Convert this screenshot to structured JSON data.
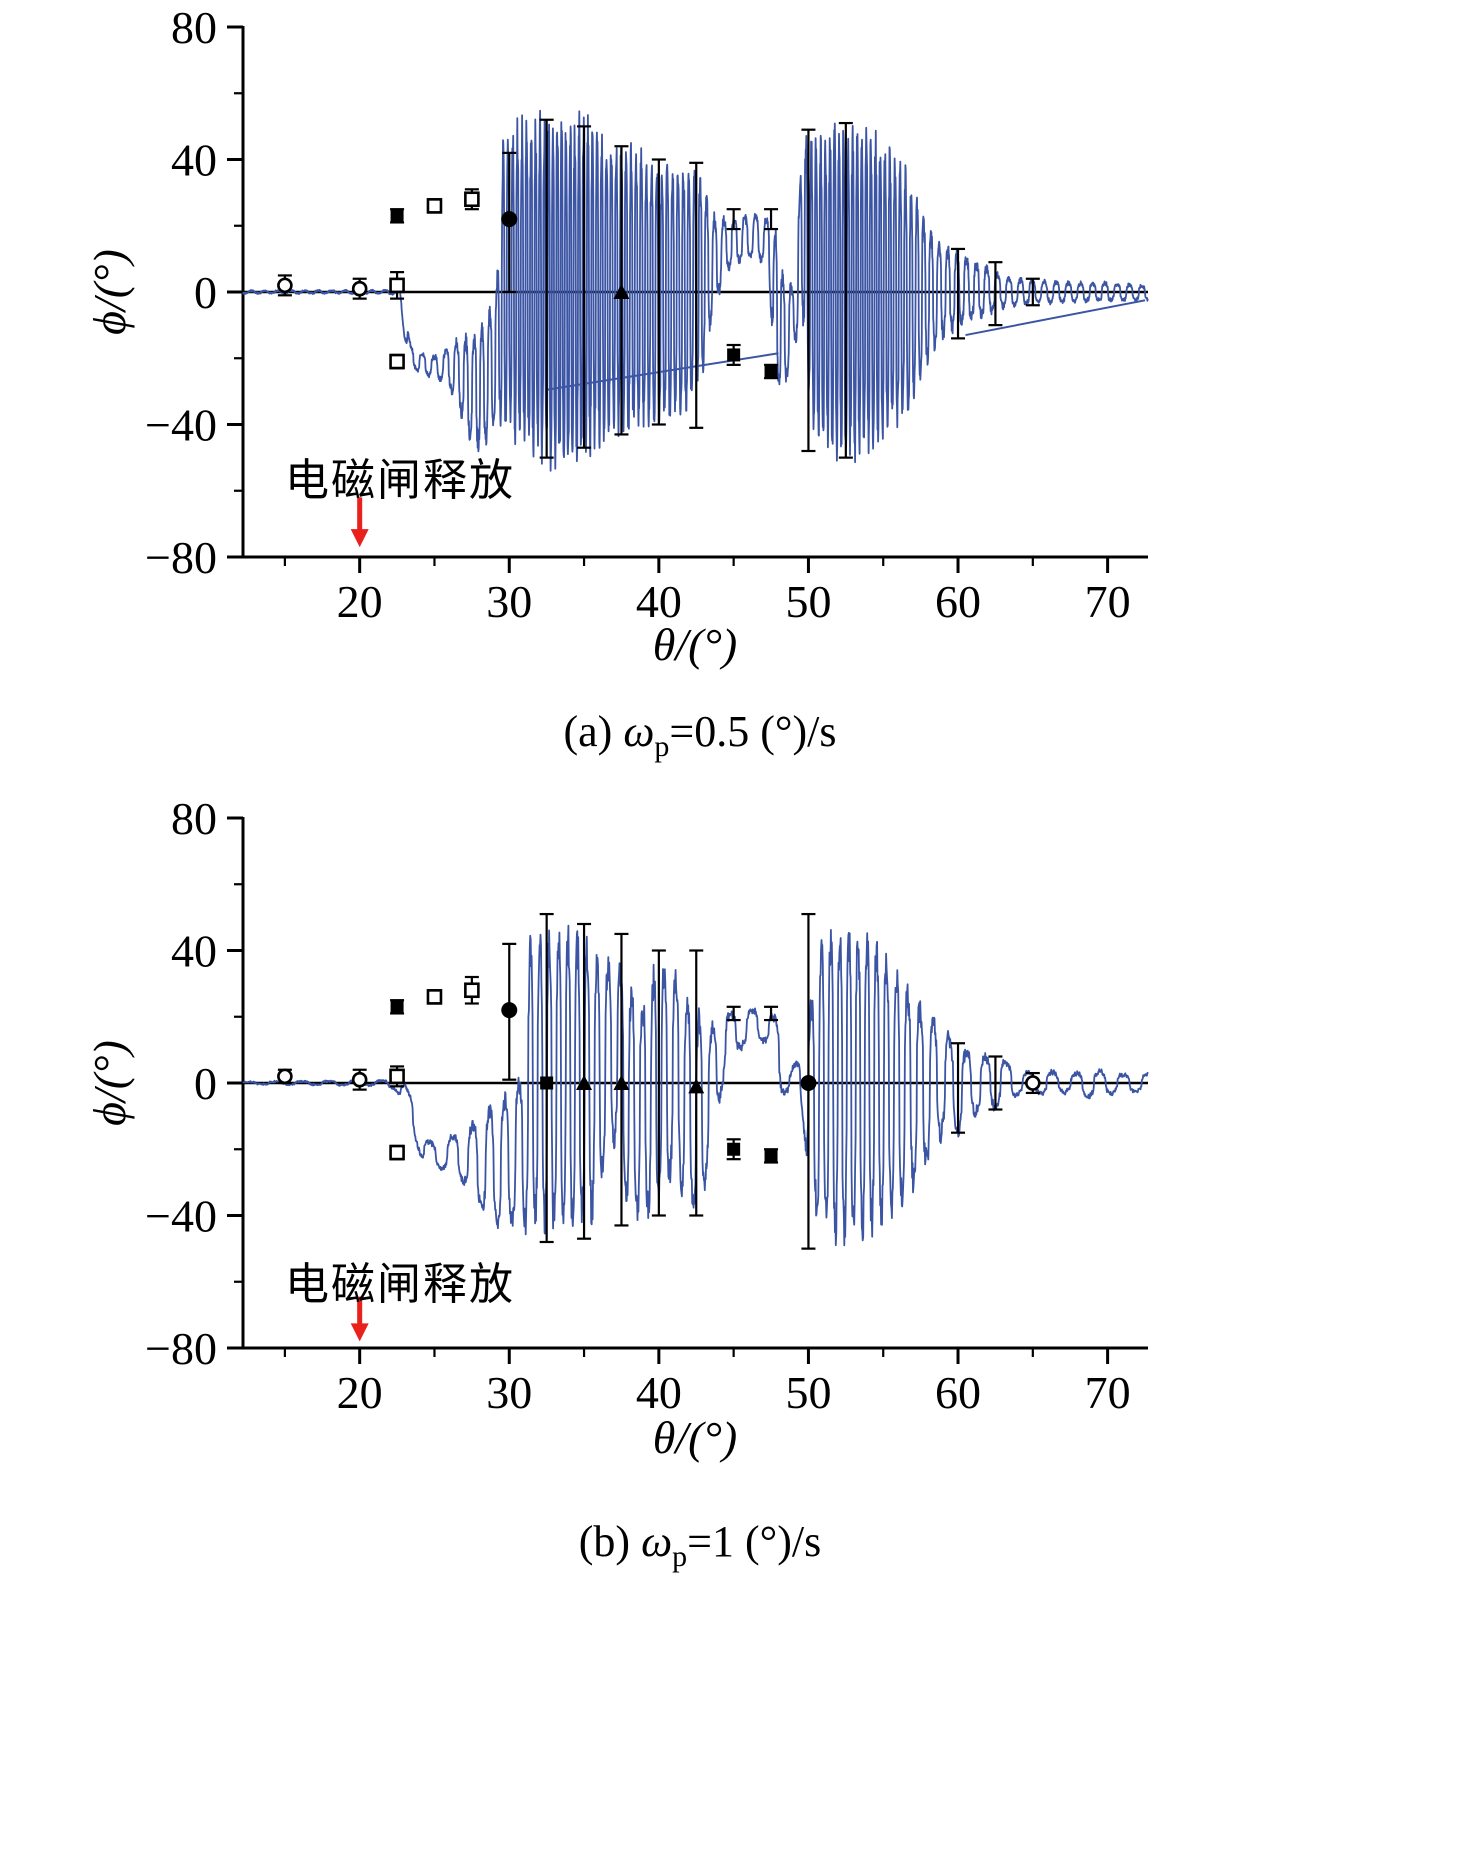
{
  "figure": {
    "background": "#ffffff",
    "line_color": "#3b55a4",
    "marker_color": "#000000",
    "arrow_color": "#e8211d"
  },
  "chart_data": [
    {
      "type": "line",
      "title": "(a) ωp=0.5 (°)/s",
      "xlabel": "θ/(°)",
      "ylabel": "ϕ/(°)",
      "xlim": [
        12.2,
        72.7
      ],
      "ylim": [
        -80,
        80
      ],
      "grid": false,
      "legend": "none",
      "xticks": [
        20,
        30,
        40,
        50,
        60,
        70
      ],
      "xticks_minor": [
        15,
        25,
        35,
        45,
        55,
        65
      ],
      "yticks": [
        80,
        40,
        0,
        -40,
        -80
      ],
      "ytick_labels": [
        "80",
        "40",
        "0",
        "−40",
        "−80"
      ],
      "yticks_minor": [
        60,
        20,
        -20,
        -60
      ],
      "caption": {
        "index": "(a)",
        "symbol": "ω",
        "sub": "p",
        "rest": "=0.5 (°)/s"
      },
      "annotation": {
        "text": "电磁闸释放",
        "arrow_x": 20,
        "arrow_y_from": -62,
        "arrow_y_to": -77,
        "color": "#e8211d"
      },
      "zero_line": true,
      "series": [
        {
          "name": "simulated-roll-response",
          "color": "#3b55a4",
          "envelope": [
            [
              12.2,
              -0.4,
              0.4
            ],
            [
              21.8,
              -0.5,
              0.5
            ],
            [
              22.6,
              -1,
              1
            ],
            [
              23,
              -14,
              -4
            ],
            [
              23.4,
              -22,
              -16
            ],
            [
              24,
              -25,
              -18
            ],
            [
              25,
              -26,
              -19
            ],
            [
              25.8,
              -28,
              -17
            ],
            [
              26.5,
              -34,
              -14
            ],
            [
              27.2,
              -44,
              -13
            ],
            [
              28,
              -49,
              -10
            ],
            [
              28.6,
              -46,
              -6
            ],
            [
              29.2,
              -40,
              6
            ],
            [
              29.6,
              -42,
              50
            ],
            [
              30.2,
              -46,
              52
            ],
            [
              31,
              -50,
              54
            ],
            [
              32,
              -55,
              55
            ],
            [
              33.5,
              -57,
              56
            ],
            [
              35,
              -53,
              56
            ],
            [
              36,
              -48,
              52
            ],
            [
              37,
              -44,
              48
            ],
            [
              38,
              -45,
              46
            ],
            [
              39,
              -42,
              44
            ],
            [
              40,
              -43,
              41
            ],
            [
              41,
              -40,
              40
            ],
            [
              42,
              -38,
              40
            ],
            [
              42.8,
              -30,
              38
            ],
            [
              43.5,
              -10,
              24
            ],
            [
              44.5,
              6,
              22
            ],
            [
              45.5,
              9,
              23
            ],
            [
              46.5,
              10,
              24
            ],
            [
              47.3,
              8,
              22
            ],
            [
              47.8,
              -28,
              20
            ],
            [
              48.3,
              -32,
              6
            ],
            [
              49,
              -18,
              2
            ],
            [
              49.6,
              -10,
              48
            ],
            [
              50.2,
              -46,
              50
            ],
            [
              51,
              -50,
              52
            ],
            [
              52,
              -52,
              53
            ],
            [
              53.5,
              -53,
              52
            ],
            [
              54.5,
              -50,
              50
            ],
            [
              55.5,
              -46,
              46
            ],
            [
              56.5,
              -40,
              38
            ],
            [
              57.2,
              -32,
              30
            ],
            [
              58,
              -22,
              22
            ],
            [
              59,
              -14,
              15
            ],
            [
              60,
              -11,
              12
            ],
            [
              61,
              -9,
              10
            ],
            [
              62,
              -7,
              8
            ],
            [
              63,
              -5,
              5
            ],
            [
              64.5,
              -4,
              4
            ],
            [
              66,
              -3.5,
              3.5
            ],
            [
              68,
              -3,
              3
            ],
            [
              70,
              -3,
              3
            ],
            [
              72.7,
              -2.5,
              2
            ]
          ],
          "oscillation": {
            "dx": 0.02,
            "base_freq": 1.1,
            "amp_freq": 0.042,
            "seed": 42
          }
        }
      ],
      "trend_lines": [
        [
          [
            32.5,
            -29.5
          ],
          [
            48,
            -18.5
          ]
        ],
        [
          [
            60.5,
            -13
          ],
          [
            72.5,
            -2.5
          ]
        ]
      ],
      "markers": [
        {
          "x": 15,
          "y": 2,
          "lo": 3,
          "hi": 3,
          "sym": "open-circle"
        },
        {
          "x": 20,
          "y": 1,
          "lo": 3,
          "hi": 3,
          "sym": "open-circle"
        },
        {
          "x": 22.5,
          "y": 2,
          "lo": 4,
          "hi": 4,
          "sym": "open-square"
        },
        {
          "x": 22.5,
          "y": 23,
          "lo": 2,
          "hi": 2,
          "sym": "filled-square"
        },
        {
          "x": 25,
          "y": 26,
          "lo": 2,
          "hi": 2,
          "sym": "open-square"
        },
        {
          "x": 27.5,
          "y": 28,
          "lo": 3,
          "hi": 3,
          "sym": "open-square"
        },
        {
          "x": 22.5,
          "y": -21,
          "lo": 2,
          "hi": 2,
          "sym": "open-square"
        },
        {
          "x": 30,
          "y": 22,
          "lo": 22,
          "hi": 20,
          "sym": "filled-circle"
        },
        {
          "x": 32.5,
          "y": 1,
          "lo": 51,
          "hi": 51,
          "sym": "bar"
        },
        {
          "x": 35,
          "y": 1,
          "lo": 48,
          "hi": 49,
          "sym": "bar"
        },
        {
          "x": 37.5,
          "y": 0,
          "lo": 43,
          "hi": 44,
          "sym": "filled-triangle"
        },
        {
          "x": 40,
          "y": 0,
          "lo": 40,
          "hi": 40,
          "sym": "bar"
        },
        {
          "x": 42.5,
          "y": 0,
          "lo": 41,
          "hi": 39,
          "sym": "bar"
        },
        {
          "x": 45,
          "y": 22,
          "lo": 3,
          "hi": 3,
          "sym": "bar"
        },
        {
          "x": 47.5,
          "y": 22,
          "lo": 3,
          "hi": 3,
          "sym": "bar"
        },
        {
          "x": 45,
          "y": -19,
          "lo": 3,
          "hi": 3,
          "sym": "filled-square"
        },
        {
          "x": 47.5,
          "y": -24,
          "lo": 2,
          "hi": 2,
          "sym": "filled-square"
        },
        {
          "x": 50,
          "y": 0,
          "lo": 48,
          "hi": 49,
          "sym": "bar"
        },
        {
          "x": 52.5,
          "y": 0,
          "lo": 50,
          "hi": 51,
          "sym": "bar"
        },
        {
          "x": 60,
          "y": 0,
          "lo": 14,
          "hi": 13,
          "sym": "bar"
        },
        {
          "x": 62.5,
          "y": -1,
          "lo": 9,
          "hi": 10,
          "sym": "bar"
        },
        {
          "x": 65,
          "y": 0,
          "lo": 4,
          "hi": 4,
          "sym": "bar"
        }
      ]
    },
    {
      "type": "line",
      "title": "(b) ωp=1 (°)/s",
      "xlabel": "θ/(°)",
      "ylabel": "ϕ/(°)",
      "xlim": [
        12.2,
        72.7
      ],
      "ylim": [
        -80,
        80
      ],
      "grid": false,
      "legend": "none",
      "xticks": [
        20,
        30,
        40,
        50,
        60,
        70
      ],
      "xticks_minor": [
        15,
        25,
        35,
        45,
        55,
        65
      ],
      "yticks": [
        80,
        40,
        0,
        -40,
        -80
      ],
      "ytick_labels": [
        "80",
        "40",
        "0",
        "−40",
        "−80"
      ],
      "yticks_minor": [
        60,
        20,
        -20,
        -60
      ],
      "caption": {
        "index": "(b)",
        "symbol": "ω",
        "sub": "p",
        "rest": "=1 (°)/s"
      },
      "annotation": {
        "text": "电磁闸释放",
        "arrow_x": 20,
        "arrow_y_from": -64.5,
        "arrow_y_to": -78,
        "color": "#e8211d"
      },
      "zero_line": true,
      "series": [
        {
          "name": "simulated-roll-response",
          "color": "#3b55a4",
          "envelope": [
            [
              12.2,
              -0.4,
              0.4
            ],
            [
              21.5,
              -0.8,
              0.8
            ],
            [
              22.3,
              -2,
              1
            ],
            [
              23,
              -6,
              0
            ],
            [
              23.6,
              -16,
              -4
            ],
            [
              24.2,
              -24,
              -16
            ],
            [
              25,
              -26,
              -18
            ],
            [
              26,
              -27,
              -16
            ],
            [
              26.8,
              -30,
              -14
            ],
            [
              27.6,
              -36,
              -11
            ],
            [
              28.4,
              -42,
              -8
            ],
            [
              29.2,
              -45,
              -4
            ],
            [
              30,
              -44,
              0
            ],
            [
              30.8,
              -46,
              4
            ],
            [
              31.4,
              -45,
              46
            ],
            [
              32.5,
              -47,
              49
            ],
            [
              33.5,
              -48,
              48
            ],
            [
              34.5,
              -47,
              48
            ],
            [
              35.5,
              -44,
              42
            ],
            [
              36.5,
              -28,
              40
            ],
            [
              37.2,
              -20,
              38
            ],
            [
              38,
              -44,
              32
            ],
            [
              39,
              -43,
              28
            ],
            [
              40,
              -41,
              40
            ],
            [
              41,
              -28,
              36
            ],
            [
              42,
              -40,
              28
            ],
            [
              42.8,
              -42,
              22
            ],
            [
              43.6,
              -18,
              18
            ],
            [
              44.5,
              4,
              22
            ],
            [
              45.5,
              10,
              23
            ],
            [
              46.5,
              12,
              23
            ],
            [
              47.4,
              12,
              22
            ],
            [
              48,
              -4,
              20
            ],
            [
              48.8,
              -4,
              4
            ],
            [
              49.5,
              -8,
              10
            ],
            [
              50.2,
              -40,
              30
            ],
            [
              51,
              -48,
              48
            ],
            [
              52,
              -51,
              50
            ],
            [
              53.5,
              -50,
              50
            ],
            [
              54.8,
              -46,
              44
            ],
            [
              56,
              -40,
              38
            ],
            [
              57,
              -33,
              28
            ],
            [
              58,
              -26,
              24
            ],
            [
              59,
              -16,
              18
            ],
            [
              60,
              -17,
              12
            ],
            [
              61,
              -11,
              11
            ],
            [
              62,
              -9,
              9
            ],
            [
              63,
              -7,
              8
            ],
            [
              64,
              -4,
              5
            ],
            [
              65,
              -3,
              3
            ],
            [
              66,
              -4,
              4
            ],
            [
              67.5,
              -3,
              3
            ],
            [
              68.5,
              -5,
              4
            ],
            [
              70,
              -4,
              4
            ],
            [
              71,
              -3,
              3
            ],
            [
              72.7,
              -3,
              3
            ]
          ],
          "oscillation": {
            "dx": 0.03,
            "base_freq": 0.55,
            "amp_freq": 0.022,
            "seed": 7
          }
        }
      ],
      "trend_lines": [],
      "markers": [
        {
          "x": 15,
          "y": 2,
          "lo": 2,
          "hi": 2,
          "sym": "open-circle"
        },
        {
          "x": 20,
          "y": 1,
          "lo": 3,
          "hi": 3,
          "sym": "open-circle"
        },
        {
          "x": 22.5,
          "y": 2,
          "lo": 3,
          "hi": 3,
          "sym": "open-square"
        },
        {
          "x": 22.5,
          "y": 23,
          "lo": 2,
          "hi": 2,
          "sym": "filled-square"
        },
        {
          "x": 25,
          "y": 26,
          "lo": 2,
          "hi": 2,
          "sym": "open-square"
        },
        {
          "x": 27.5,
          "y": 28,
          "lo": 4,
          "hi": 4,
          "sym": "open-square"
        },
        {
          "x": 22.5,
          "y": -21,
          "lo": 2,
          "hi": 2,
          "sym": "open-square"
        },
        {
          "x": 30,
          "y": 22,
          "lo": 21,
          "hi": 20,
          "sym": "filled-circle"
        },
        {
          "x": 32.5,
          "y": 0,
          "lo": 48,
          "hi": 51,
          "sym": "filled-square"
        },
        {
          "x": 35,
          "y": 0,
          "lo": 47,
          "hi": 48,
          "sym": "filled-triangle"
        },
        {
          "x": 37.5,
          "y": 0,
          "lo": 43,
          "hi": 45,
          "sym": "filled-triangle"
        },
        {
          "x": 40,
          "y": 0,
          "lo": 40,
          "hi": 40,
          "sym": "bar"
        },
        {
          "x": 42.5,
          "y": -1,
          "lo": 39,
          "hi": 41,
          "sym": "filled-triangle"
        },
        {
          "x": 45,
          "y": 21,
          "lo": 2,
          "hi": 2,
          "sym": "bar"
        },
        {
          "x": 47.5,
          "y": 21,
          "lo": 2,
          "hi": 2,
          "sym": "bar"
        },
        {
          "x": 45,
          "y": -20,
          "lo": 3,
          "hi": 3,
          "sym": "filled-square"
        },
        {
          "x": 47.5,
          "y": -22,
          "lo": 2,
          "hi": 2,
          "sym": "filled-square"
        },
        {
          "x": 50,
          "y": 0,
          "lo": 50,
          "hi": 51,
          "sym": "filled-circle"
        },
        {
          "x": 60,
          "y": 0,
          "lo": 15,
          "hi": 12,
          "sym": "bar"
        },
        {
          "x": 62.5,
          "y": 0,
          "lo": 8,
          "hi": 8,
          "sym": "bar"
        },
        {
          "x": 65,
          "y": 0,
          "lo": 3,
          "hi": 3,
          "sym": "open-circle"
        }
      ]
    }
  ]
}
